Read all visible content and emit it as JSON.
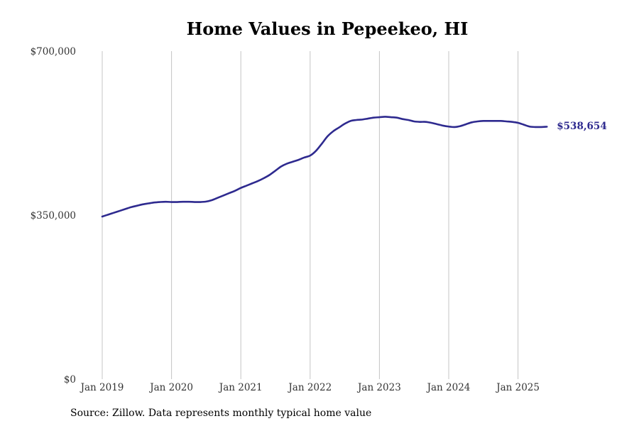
{
  "chart_data": {
    "type": "line",
    "title": "Home Values in Pepeekeo, HI",
    "xlabel": "",
    "ylabel": "",
    "ylim": [
      0,
      700000
    ],
    "y_ticks": [
      {
        "value": 0,
        "label": "$0"
      },
      {
        "value": 350000,
        "label": "$350,000"
      },
      {
        "value": 700000,
        "label": "$700,000"
      }
    ],
    "x_ticks": [
      {
        "value": 2019.0,
        "label": "Jan 2019"
      },
      {
        "value": 2020.0,
        "label": "Jan 2020"
      },
      {
        "value": 2021.0,
        "label": "Jan 2021"
      },
      {
        "value": 2022.0,
        "label": "Jan 2022"
      },
      {
        "value": 2023.0,
        "label": "Jan 2023"
      },
      {
        "value": 2024.0,
        "label": "Jan 2024"
      },
      {
        "value": 2025.0,
        "label": "Jan 2025"
      }
    ],
    "grid": "vertical",
    "series": [
      {
        "color": "#2e2a8f",
        "points": [
          [
            "2019-01",
            347000
          ],
          [
            "2019-02",
            351000
          ],
          [
            "2019-03",
            355000
          ],
          [
            "2019-04",
            359000
          ],
          [
            "2019-05",
            363000
          ],
          [
            "2019-06",
            367000
          ],
          [
            "2019-07",
            370000
          ],
          [
            "2019-08",
            373000
          ],
          [
            "2019-09",
            375000
          ],
          [
            "2019-10",
            377000
          ],
          [
            "2019-11",
            378000
          ],
          [
            "2019-12",
            378500
          ],
          [
            "2020-01",
            378000
          ],
          [
            "2020-02",
            378000
          ],
          [
            "2020-03",
            378500
          ],
          [
            "2020-04",
            378500
          ],
          [
            "2020-05",
            378000
          ],
          [
            "2020-06",
            378000
          ],
          [
            "2020-07",
            379000
          ],
          [
            "2020-08",
            382000
          ],
          [
            "2020-09",
            387000
          ],
          [
            "2020-10",
            392000
          ],
          [
            "2020-11",
            397000
          ],
          [
            "2020-12",
            402000
          ],
          [
            "2021-01",
            408000
          ],
          [
            "2021-02",
            413000
          ],
          [
            "2021-03",
            418000
          ],
          [
            "2021-04",
            423000
          ],
          [
            "2021-05",
            429000
          ],
          [
            "2021-06",
            436000
          ],
          [
            "2021-07",
            445000
          ],
          [
            "2021-08",
            454000
          ],
          [
            "2021-09",
            460000
          ],
          [
            "2021-10",
            464000
          ],
          [
            "2021-11",
            468000
          ],
          [
            "2021-12",
            473000
          ],
          [
            "2022-01",
            477000
          ],
          [
            "2022-02",
            487000
          ],
          [
            "2022-03",
            502000
          ],
          [
            "2022-04",
            518000
          ],
          [
            "2022-05",
            529000
          ],
          [
            "2022-06",
            537000
          ],
          [
            "2022-07",
            545000
          ],
          [
            "2022-08",
            551000
          ],
          [
            "2022-09",
            553000
          ],
          [
            "2022-10",
            554000
          ],
          [
            "2022-11",
            556000
          ],
          [
            "2022-12",
            558000
          ],
          [
            "2023-01",
            559000
          ],
          [
            "2023-02",
            560000
          ],
          [
            "2023-03",
            559000
          ],
          [
            "2023-04",
            558000
          ],
          [
            "2023-05",
            555000
          ],
          [
            "2023-06",
            553000
          ],
          [
            "2023-07",
            550000
          ],
          [
            "2023-08",
            549000
          ],
          [
            "2023-09",
            549000
          ],
          [
            "2023-10",
            547000
          ],
          [
            "2023-11",
            544000
          ],
          [
            "2023-12",
            541000
          ],
          [
            "2024-01",
            539000
          ],
          [
            "2024-02",
            538000
          ],
          [
            "2024-03",
            540000
          ],
          [
            "2024-04",
            544000
          ],
          [
            "2024-05",
            548000
          ],
          [
            "2024-06",
            550000
          ],
          [
            "2024-07",
            551000
          ],
          [
            "2024-08",
            551000
          ],
          [
            "2024-09",
            551000
          ],
          [
            "2024-10",
            551000
          ],
          [
            "2024-11",
            550000
          ],
          [
            "2024-12",
            549000
          ],
          [
            "2025-01",
            547000
          ],
          [
            "2025-02",
            543000
          ],
          [
            "2025-03",
            539000
          ],
          [
            "2025-04",
            538000
          ],
          [
            "2025-05",
            538000
          ],
          [
            "2025-06",
            538654
          ]
        ]
      }
    ],
    "end_label": "$538,654",
    "source_text": "Source: Zillow. Data represents monthly typical home value"
  }
}
